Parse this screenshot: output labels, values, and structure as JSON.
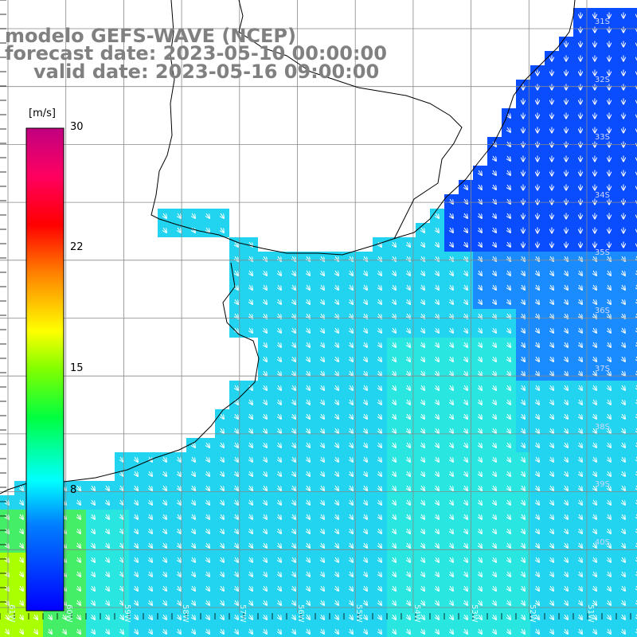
{
  "title": {
    "line1": "modelo GEFS-WAVE (NCEP)",
    "line2": "forecast date: 2023-05-10 00:00:00",
    "line3": "valid date: 2023-05-16 09:00:00"
  },
  "colorbar": {
    "unit": "[m/s]",
    "ticks": [
      "30",
      "22",
      "15",
      "8"
    ],
    "range": [
      0,
      30
    ],
    "colors": [
      "#0000ff",
      "#00aaff",
      "#00ffff",
      "#00ff00",
      "#ffff00",
      "#ff7f00",
      "#ff0000",
      "#ff0066",
      "#cc0077"
    ]
  },
  "axes": {
    "lat_labels": [
      "31S",
      "32S",
      "33S",
      "34S",
      "35S",
      "36S",
      "37S",
      "38S",
      "39S",
      "40S"
    ],
    "lon_labels": [
      "61W",
      "60W",
      "59W",
      "58W",
      "57W",
      "56W",
      "55W",
      "54W",
      "53W",
      "52W",
      "51W"
    ]
  },
  "field": {
    "variable": "wind speed",
    "ocean_colors": {
      "deep_blue": "#0a4dff",
      "blue": "#1a8cff",
      "cyan": "#22d4f0",
      "light_cyan": "#2ae6e0",
      "green": "#44ee66",
      "yellow_green": "#aaff00"
    },
    "land_color": "#ffffff"
  }
}
